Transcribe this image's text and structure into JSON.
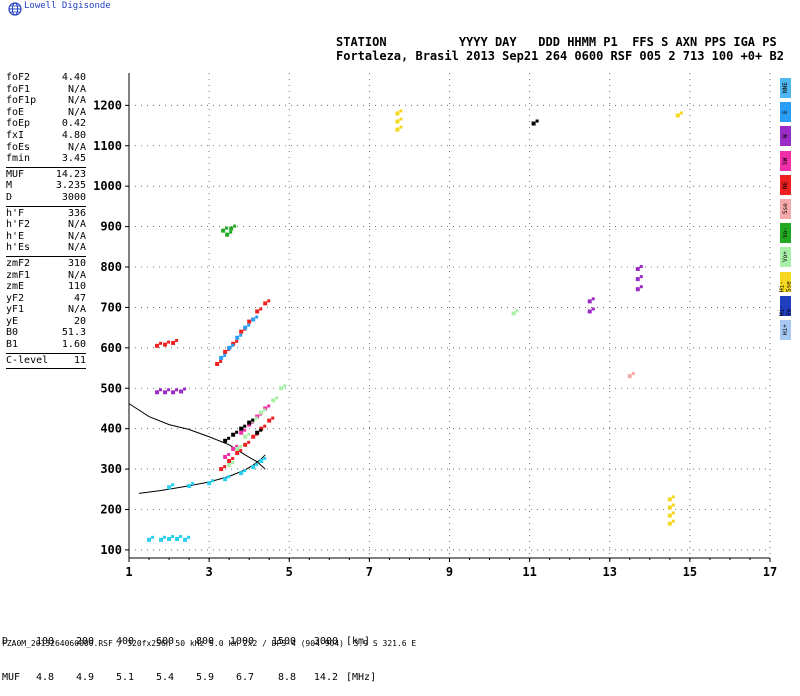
{
  "brand": "Lowell Digisonde",
  "header": {
    "line1": "STATION          YYYY DAY   DDD HHMM P1  FFS S AXN PPS IGA PS",
    "line2": "Fortaleza, Brasil 2013 Sep21 264 0600 RSF 005 2 713 100 +0+ B2"
  },
  "params": [
    {
      "group": [
        {
          "k": "foF2",
          "v": "4.40"
        },
        {
          "k": "foF1",
          "v": "N/A"
        },
        {
          "k": "foF1p",
          "v": "N/A"
        },
        {
          "k": "foE",
          "v": "N/A"
        },
        {
          "k": "foEp",
          "v": "0.42"
        },
        {
          "k": "fxI",
          "v": "4.80"
        },
        {
          "k": "foEs",
          "v": "N/A"
        },
        {
          "k": "fmin",
          "v": "3.45"
        }
      ]
    },
    {
      "group": [
        {
          "k": "MUF",
          "v": "14.23"
        },
        {
          "k": "M",
          "v": "3.235"
        },
        {
          "k": "D",
          "v": "3000"
        }
      ]
    },
    {
      "group": [
        {
          "k": "h'F",
          "v": "336"
        },
        {
          "k": "h'F2",
          "v": "N/A"
        },
        {
          "k": "h'E",
          "v": "N/A"
        },
        {
          "k": "h'Es",
          "v": "N/A"
        }
      ]
    },
    {
      "group": [
        {
          "k": "zmF2",
          "v": "310"
        },
        {
          "k": "zmF1",
          "v": "N/A"
        },
        {
          "k": "zmE",
          "v": "110"
        },
        {
          "k": "yF2",
          "v": "47"
        },
        {
          "k": "yF1",
          "v": "N/A"
        },
        {
          "k": "yE",
          "v": "20"
        },
        {
          "k": "B0",
          "v": "51.3"
        },
        {
          "k": "B1",
          "v": "1.60"
        }
      ]
    },
    {
      "group": [
        {
          "k": "C-level",
          "v": "11"
        }
      ]
    }
  ],
  "legend": [
    {
      "label": "NNE",
      "color": "#4fb8f0"
    },
    {
      "label": "E",
      "color": "#2a9df4"
    },
    {
      "label": "W",
      "color": "#9a2bc4"
    },
    {
      "label": "SW",
      "color": "#f02fa8"
    },
    {
      "label": "NE",
      "color": "#ee2020"
    },
    {
      "label": "Sse",
      "color": "#f4aaaa"
    },
    {
      "label": "Vo-",
      "color": "#22a822"
    },
    {
      "label": "Vo+",
      "color": "#a8f0a8"
    },
    {
      "label": "Hi- Sse",
      "color": "#f4d820"
    },
    {
      "label": "Hi- Vo",
      "color": "#1f3fbf"
    },
    {
      "label": "Hi+",
      "color": "#a8c8f4"
    }
  ],
  "muf_table": {
    "D": {
      "label": "D",
      "values": [
        "100",
        "200",
        "400",
        "600",
        "800",
        "1000",
        "1500",
        "3000"
      ],
      "unit": "[km]"
    },
    "MUF": {
      "label": "MUF",
      "values": [
        "4.8",
        "4.9",
        "5.1",
        "5.4",
        "5.9",
        "6.7",
        "8.8",
        "14.2"
      ],
      "unit": "[MHz]"
    }
  },
  "footer": "FZA0M_2013264060000.RSF / 320fx256h 50 kHz 5.0 km 2x2 / DPS-4 (904-904)  3.9 S 321.6 E",
  "chart_data": {
    "type": "scatter",
    "title": "",
    "xlabel": "",
    "ylabel": "",
    "xlim": [
      1,
      17
    ],
    "ylim": [
      80,
      1280
    ],
    "x_ticks": [
      1,
      3,
      5,
      7,
      9,
      11,
      13,
      15,
      17
    ],
    "y_ticks": [
      100,
      200,
      300,
      400,
      500,
      600,
      700,
      800,
      900,
      1000,
      1100,
      1200
    ],
    "grid": true,
    "colors": {
      "black": "#000000",
      "red": "#ee2020",
      "magenta": "#f02fa8",
      "purple": "#9a2bc4",
      "cyan": "#2ad0f0",
      "blue": "#2a9df4",
      "green": "#22a822",
      "lightgreen": "#a8f0a8",
      "pink": "#f4aaaa",
      "yellow": "#f4d820",
      "navy": "#1f3fbf"
    },
    "series": [
      {
        "name": "O-trace",
        "color": "#000000",
        "x": [
          1.25,
          1.8,
          2.4,
          3.0,
          3.5,
          3.9,
          4.1,
          4.3,
          4.4
        ],
        "y": [
          240,
          247,
          257,
          268,
          282,
          298,
          310,
          325,
          335
        ]
      },
      {
        "name": "h profile",
        "color": "#000000",
        "x": [
          1.0,
          1.5,
          2.0,
          2.5,
          3.0,
          3.5,
          3.9,
          4.2,
          4.4
        ],
        "y": [
          462,
          430,
          410,
          398,
          380,
          360,
          335,
          318,
          300
        ]
      }
    ],
    "echo_clusters": [
      {
        "x": [
          2.0,
          2.5,
          3.0,
          3.4,
          3.8,
          4.1,
          4.3
        ],
        "y": [
          255,
          258,
          265,
          275,
          290,
          305,
          320
        ],
        "color": "cyan"
      },
      {
        "x": [
          3.3,
          3.5,
          3.7,
          3.9,
          4.1,
          4.3,
          4.5
        ],
        "y": [
          300,
          320,
          340,
          360,
          380,
          400,
          420
        ],
        "color": "red"
      },
      {
        "x": [
          3.4,
          3.6,
          3.8,
          4.0,
          4.2,
          4.4
        ],
        "y": [
          330,
          350,
          390,
          410,
          430,
          450
        ],
        "color": "magenta"
      },
      {
        "x": [
          3.5,
          3.7,
          3.9,
          4.1,
          4.3,
          4.6,
          4.8
        ],
        "y": [
          310,
          350,
          380,
          420,
          440,
          470,
          500
        ],
        "color": "lightgreen"
      },
      {
        "x": [
          3.4,
          3.6,
          3.8,
          4.0,
          4.2
        ],
        "y": [
          370,
          385,
          400,
          415,
          390
        ],
        "color": "black"
      },
      {
        "x": [
          3.2,
          3.4,
          3.6,
          3.8,
          4.0,
          4.2,
          4.4
        ],
        "y": [
          560,
          590,
          610,
          640,
          665,
          690,
          710
        ],
        "color": "red"
      },
      {
        "x": [
          3.3,
          3.5,
          3.7,
          3.9,
          4.1
        ],
        "y": [
          575,
          600,
          625,
          650,
          670
        ],
        "color": "blue"
      },
      {
        "x": [
          1.7,
          1.9,
          2.1,
          2.3
        ],
        "y": [
          490,
          490,
          490,
          492
        ],
        "color": "purple"
      },
      {
        "x": [
          1.7,
          1.9,
          2.1
        ],
        "y": [
          605,
          608,
          612
        ],
        "color": "red"
      },
      {
        "x": [
          1.5,
          1.8,
          2.0,
          2.2,
          2.4
        ],
        "y": [
          125,
          125,
          127,
          127,
          125
        ],
        "color": "cyan"
      },
      {
        "x": [
          3.35,
          3.45,
          3.55
        ],
        "y": [
          890,
          880,
          895
        ],
        "color": "green"
      },
      {
        "x": [
          7.7,
          7.7,
          7.7
        ],
        "y": [
          1180,
          1160,
          1140
        ],
        "color": "yellow"
      },
      {
        "x": [
          11.1
        ],
        "y": [
          1155
        ],
        "color": "black"
      },
      {
        "x": [
          14.7
        ],
        "y": [
          1175
        ],
        "color": "yellow"
      },
      {
        "x": [
          13.7,
          13.7,
          13.7
        ],
        "y": [
          795,
          770,
          745
        ],
        "color": "purple"
      },
      {
        "x": [
          12.5,
          12.5
        ],
        "y": [
          715,
          690
        ],
        "color": "purple"
      },
      {
        "x": [
          13.5
        ],
        "y": [
          530
        ],
        "color": "pink"
      },
      {
        "x": [
          14.5,
          14.5,
          14.5,
          14.5
        ],
        "y": [
          225,
          205,
          185,
          165
        ],
        "color": "yellow"
      },
      {
        "x": [
          10.6
        ],
        "y": [
          685
        ],
        "color": "lightgreen"
      }
    ]
  }
}
